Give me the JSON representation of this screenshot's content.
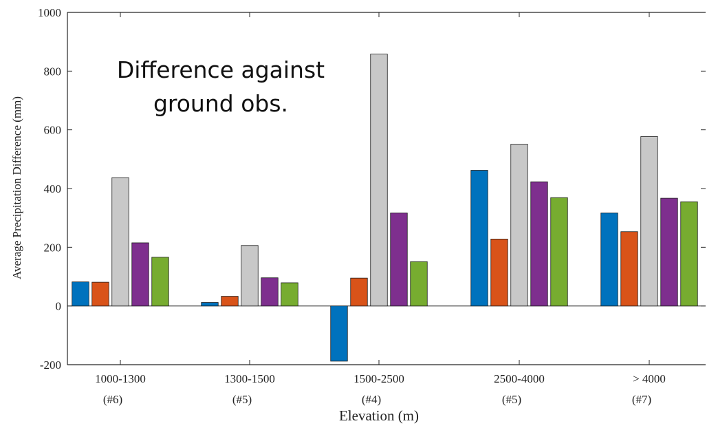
{
  "chart_data": {
    "type": "bar",
    "title": "",
    "annotation": [
      "Difference against",
      "ground obs."
    ],
    "xlabel": "Elevation (m)",
    "ylabel": "Average Precipitation Difference (mm)",
    "ylim": [
      -200,
      1000
    ],
    "yticks": [
      "-200",
      "0",
      "200",
      "400",
      "600",
      "800",
      "1000"
    ],
    "categories": [
      "1000-1300",
      "1300-1500",
      "1500-2500",
      "2500-4000",
      "> 4000"
    ],
    "category_counts": [
      "(#6)",
      "(#5)",
      "(#4)",
      "(#5)",
      "(#7)"
    ],
    "colors": [
      "#0072BD",
      "#D95319",
      "#C8C8C8",
      "#7E2F8E",
      "#77AC30"
    ],
    "series": [
      {
        "values": [
          82,
          12,
          -188,
          462,
          317
        ]
      },
      {
        "values": [
          81,
          33,
          95,
          228,
          253
        ]
      },
      {
        "values": [
          437,
          206,
          858,
          551,
          577
        ]
      },
      {
        "values": [
          215,
          96,
          317,
          423,
          367
        ]
      },
      {
        "values": [
          166,
          79,
          151,
          369,
          355
        ]
      }
    ],
    "grid": false,
    "legend": "none"
  }
}
